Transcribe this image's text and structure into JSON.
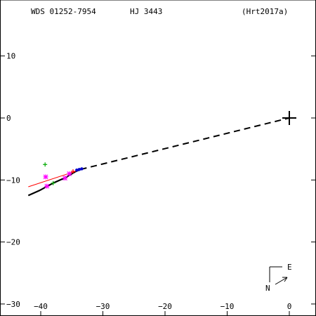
{
  "header": {
    "wds": "WDS 01252-7954",
    "name": "HJ 3443",
    "reference": "(Hrt2017a)"
  },
  "compass": {
    "east": "E",
    "north": "N"
  },
  "chart_data": {
    "type": "scatter",
    "title": "",
    "xlabel": "",
    "ylabel": "",
    "xlim": [
      -45,
      4
    ],
    "ylim": [
      -30,
      18
    ],
    "grid": false,
    "x_ticks": [
      -40,
      -30,
      -20,
      -10,
      0
    ],
    "y_ticks": [
      10,
      0,
      -10,
      -20,
      -30
    ],
    "x_tick_labels": [
      "−40",
      "−30",
      "−20",
      "−10",
      "0"
    ],
    "y_tick_labels": [
      "10",
      "0",
      "−10",
      "−20",
      "−30"
    ],
    "primary": {
      "x": 0,
      "y": 0
    },
    "orbit_arc": {
      "color": "#000000",
      "points": [
        [
          -42,
          -12.5
        ],
        [
          -40.2,
          -11.7
        ],
        [
          -38,
          -10.5
        ],
        [
          -36,
          -9.6
        ],
        [
          -34.5,
          -8.7
        ],
        [
          -33.6,
          -8.3
        ]
      ]
    },
    "orbit_dashed": {
      "color": "#000000",
      "points": [
        [
          -33.6,
          -8.3
        ],
        [
          0,
          0
        ]
      ]
    },
    "fit_line": {
      "color": "#ff0000",
      "points": [
        [
          -42,
          -11.1
        ],
        [
          -33.5,
          -8.3
        ]
      ]
    },
    "observations": [
      {
        "marker": "plus",
        "color": "#00aa00",
        "x": -39.3,
        "y": -7.5
      },
      {
        "marker": "star",
        "color": "#ff00ff",
        "x": -39.2,
        "y": -9.5
      },
      {
        "marker": "star",
        "color": "#ff00ff",
        "x": -39.0,
        "y": -11.0
      },
      {
        "marker": "plus",
        "color": "#00aa00",
        "x": -38.0,
        "y": -10.5
      },
      {
        "marker": "star",
        "color": "#ff00ff",
        "x": -36.1,
        "y": -9.7
      },
      {
        "marker": "star",
        "color": "#ff00ff",
        "x": -35.4,
        "y": -9.0
      },
      {
        "marker": "plus",
        "color": "#ff0000",
        "x": -34.8,
        "y": -8.6
      },
      {
        "marker": "dot",
        "color": "#0000cc",
        "x": -34.2,
        "y": -8.4
      },
      {
        "marker": "dot",
        "color": "#0000cc",
        "x": -33.8,
        "y": -8.3
      },
      {
        "marker": "dot",
        "color": "#0000cc",
        "x": -33.4,
        "y": -8.2
      }
    ]
  }
}
